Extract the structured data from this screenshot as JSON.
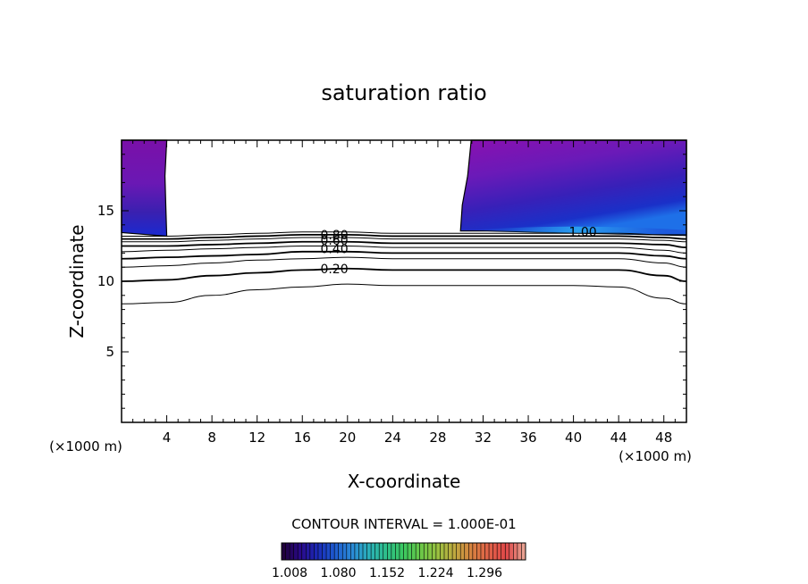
{
  "chart_data": {
    "type": "contour",
    "title": "saturation ratio",
    "xlabel": "X-coordinate",
    "ylabel": "Z-coordinate",
    "x_unit": "(×1000 m)",
    "y_unit": "(×1000 m)",
    "xlim": [
      0,
      50
    ],
    "ylim": [
      0,
      20
    ],
    "x_ticks": [
      4,
      8,
      12,
      16,
      20,
      24,
      28,
      32,
      36,
      40,
      44,
      48
    ],
    "y_ticks": [
      5,
      10,
      15
    ],
    "contour_interval_text": "CONTOUR INTERVAL = 1.000E-01",
    "contour_labels": [
      {
        "text": "0.80",
        "x": 17.6,
        "z": 13.3
      },
      {
        "text": "0.60",
        "x": 17.6,
        "z": 12.9
      },
      {
        "text": "0.40",
        "x": 17.6,
        "z": 12.3
      },
      {
        "text": "0.20",
        "x": 17.6,
        "z": 10.9
      },
      {
        "text": "1.00",
        "x": 39.6,
        "z": 13.5
      }
    ],
    "contour_levels": [
      0.1,
      0.2,
      0.3,
      0.4,
      0.5,
      0.6,
      0.7,
      0.8,
      0.9
    ],
    "contour_profiles": {
      "x": [
        0,
        4,
        8,
        12,
        16,
        20,
        24,
        28,
        32,
        36,
        40,
        44,
        48,
        50
      ],
      "z": [
        [
          8.4,
          8.5,
          9.0,
          9.4,
          9.6,
          9.8,
          9.7,
          9.7,
          9.7,
          9.7,
          9.7,
          9.6,
          8.8,
          8.4
        ],
        [
          10.0,
          10.1,
          10.4,
          10.6,
          10.8,
          10.9,
          10.8,
          10.8,
          10.8,
          10.8,
          10.8,
          10.8,
          10.4,
          10.0
        ],
        [
          11.0,
          11.1,
          11.3,
          11.5,
          11.6,
          11.7,
          11.6,
          11.6,
          11.6,
          11.6,
          11.6,
          11.6,
          11.3,
          11.0
        ],
        [
          11.6,
          11.7,
          11.8,
          11.9,
          12.1,
          12.1,
          12.0,
          12.0,
          12.0,
          12.0,
          12.0,
          12.0,
          11.8,
          11.6
        ],
        [
          12.1,
          12.2,
          12.3,
          12.4,
          12.5,
          12.5,
          12.4,
          12.4,
          12.4,
          12.4,
          12.4,
          12.4,
          12.2,
          12.0
        ],
        [
          12.5,
          12.5,
          12.6,
          12.7,
          12.8,
          12.8,
          12.7,
          12.7,
          12.7,
          12.7,
          12.7,
          12.7,
          12.6,
          12.4
        ],
        [
          12.8,
          12.8,
          12.9,
          13.0,
          13.1,
          13.1,
          13.0,
          13.0,
          13.0,
          13.0,
          13.0,
          13.0,
          12.9,
          12.8
        ],
        [
          13.0,
          13.0,
          13.1,
          13.2,
          13.3,
          13.3,
          13.2,
          13.2,
          13.2,
          13.2,
          13.2,
          13.2,
          13.1,
          13.0
        ],
        [
          13.2,
          13.2,
          13.3,
          13.4,
          13.5,
          13.5,
          13.4,
          13.4,
          13.4,
          13.4,
          13.4,
          13.4,
          13.3,
          13.3
        ]
      ]
    },
    "shaded_regions": [
      {
        "name": "left",
        "x": [
          0,
          4.0
        ],
        "z": [
          13.2,
          20
        ]
      },
      {
        "name": "right",
        "x": [
          30.0,
          50
        ],
        "z": [
          13.5,
          20
        ]
      }
    ],
    "colorbar": {
      "ticks": [
        "1.008",
        "1.080",
        "1.152",
        "1.224",
        "1.296"
      ],
      "colors": [
        "#20003c",
        "#2a0a8a",
        "#1a2ab8",
        "#1e5cd0",
        "#2a8ad8",
        "#2ab0b8",
        "#2ec08a",
        "#3ac860",
        "#6ac848",
        "#9ac040",
        "#c0a840",
        "#d88040",
        "#e06048",
        "#e04848",
        "#e8a090"
      ]
    }
  }
}
